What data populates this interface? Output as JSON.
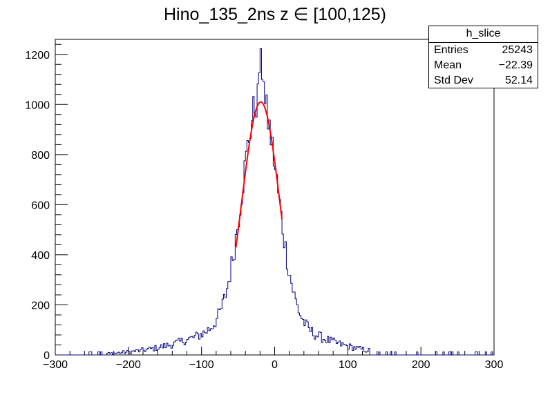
{
  "chart_data": {
    "type": "histogram",
    "title": "Hino_135_2ns z  ∈ [100,125)",
    "xlim": [
      -300,
      300
    ],
    "ylim": [
      0,
      1260
    ],
    "x_ticks": [
      -300,
      -200,
      -100,
      0,
      100,
      200,
      300
    ],
    "x_tick_labels": [
      "−300",
      "−200",
      "−100",
      "0",
      "100",
      "200",
      "300"
    ],
    "y_ticks": [
      0,
      200,
      400,
      600,
      800,
      1000,
      1200
    ],
    "y_tick_labels": [
      "0",
      "200",
      "400",
      "600",
      "800",
      "1000",
      "1200"
    ],
    "bin_width": 2,
    "histogram_color": "#000080",
    "fit": {
      "function": "gaussian",
      "color": "#ff0000",
      "amplitude": 1010,
      "mean": -19,
      "sigma": 26,
      "range": [
        -53,
        10
      ]
    },
    "stats_box": {
      "name": "h_slice",
      "entries_label": "Entries",
      "entries_value": "25243",
      "mean_label": "Mean",
      "mean_value": "−22.39",
      "stddev_label": "Std Dev",
      "stddev_value": "52.14"
    }
  }
}
